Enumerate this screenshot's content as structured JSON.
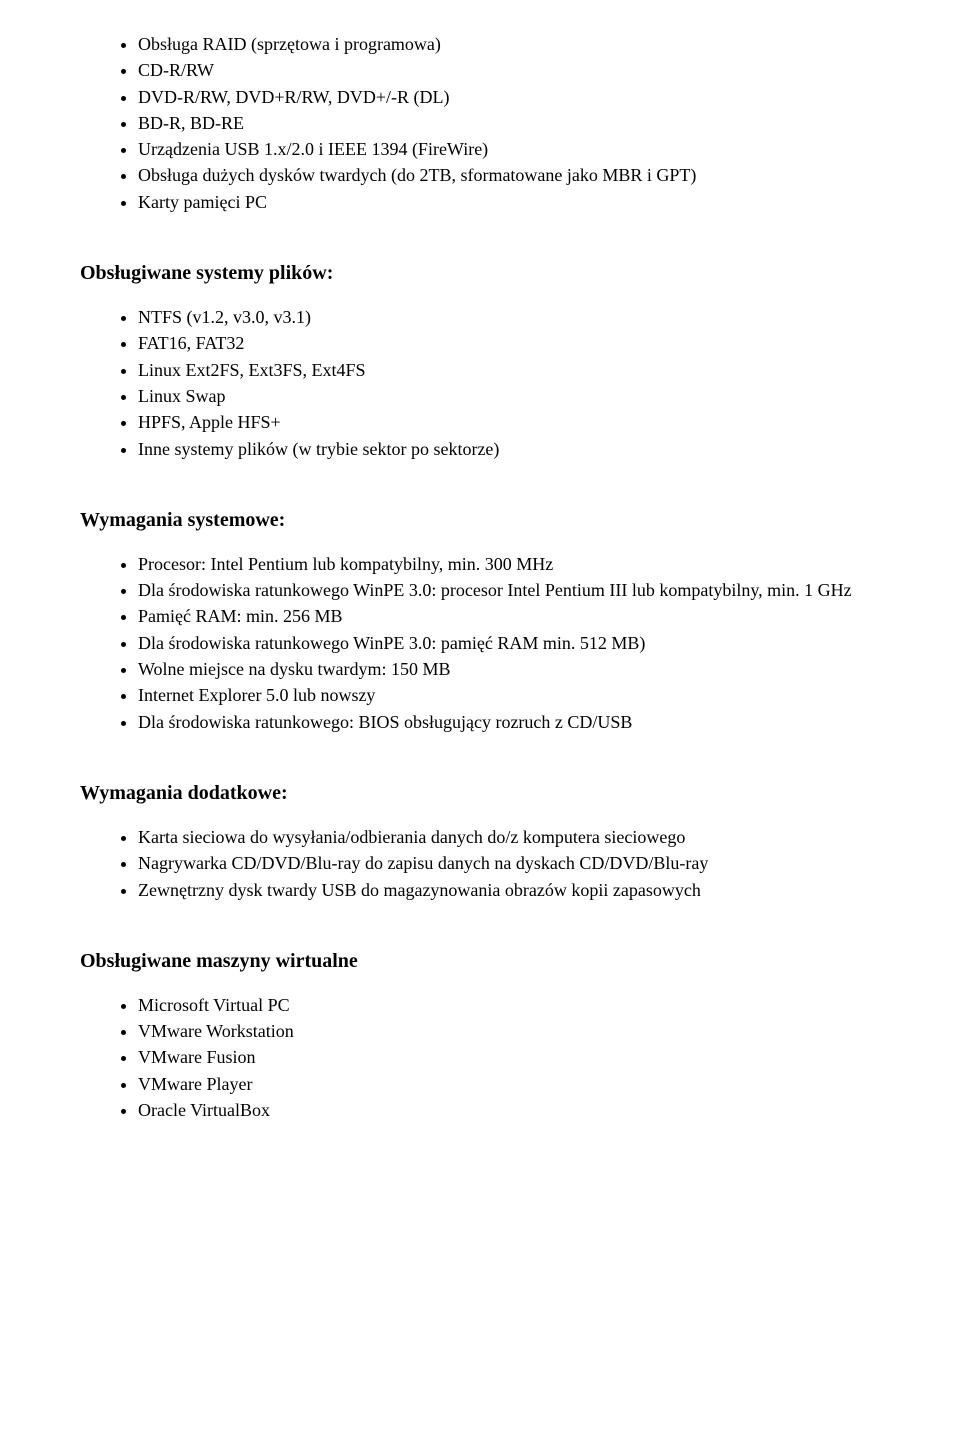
{
  "colors": {
    "background": "#ffffff",
    "text": "#000000"
  },
  "typography": {
    "font_family": "Times New Roman",
    "body_size_pt": 13,
    "heading_size_pt": 15,
    "heading_weight": "bold"
  },
  "sections": {
    "storage": {
      "items": [
        "Obsługa RAID (sprzętowa i programowa)",
        "CD-R/RW",
        "DVD-R/RW, DVD+R/RW, DVD+/-R (DL)",
        "BD-R, BD-RE",
        "Urządzenia USB 1.x/2.0 i IEEE 1394 (FireWire)",
        "Obsługa dużych dysków twardych (do 2TB, sformatowane jako MBR i GPT)",
        "Karty pamięci PC"
      ]
    },
    "filesystems": {
      "title": "Obsługiwane systemy plików:",
      "items": [
        "NTFS (v1.2, v3.0, v3.1)",
        "FAT16, FAT32",
        "Linux Ext2FS, Ext3FS, Ext4FS",
        "Linux Swap",
        "HPFS, Apple HFS+",
        "Inne systemy plików (w trybie sektor po sektorze)"
      ]
    },
    "system_req": {
      "title": "Wymagania systemowe:",
      "items": [
        "Procesor: Intel Pentium lub kompatybilny, min. 300 MHz",
        "Dla środowiska ratunkowego WinPE 3.0: procesor Intel Pentium III lub kompatybilny, min. 1 GHz",
        "Pamięć RAM: min. 256 MB",
        "Dla środowiska ratunkowego WinPE 3.0: pamięć RAM min. 512 MB)",
        "Wolne miejsce na dysku twardym: 150 MB",
        "Internet Explorer 5.0 lub nowszy",
        "Dla środowiska ratunkowego: BIOS obsługujący rozruch z CD/USB"
      ]
    },
    "additional_req": {
      "title": "Wymagania dodatkowe:",
      "items": [
        "Karta sieciowa do wysyłania/odbierania danych do/z komputera sieciowego",
        "Nagrywarka CD/DVD/Blu-ray do zapisu danych na dyskach CD/DVD/Blu-ray",
        "Zewnętrzny dysk twardy USB do magazynowania obrazów kopii zapasowych"
      ]
    },
    "virtual_machines": {
      "title": "Obsługiwane maszyny wirtualne",
      "items": [
        "Microsoft Virtual PC",
        "VMware Workstation",
        "VMware Fusion",
        "VMware Player",
        "Oracle VirtualBox"
      ]
    }
  }
}
